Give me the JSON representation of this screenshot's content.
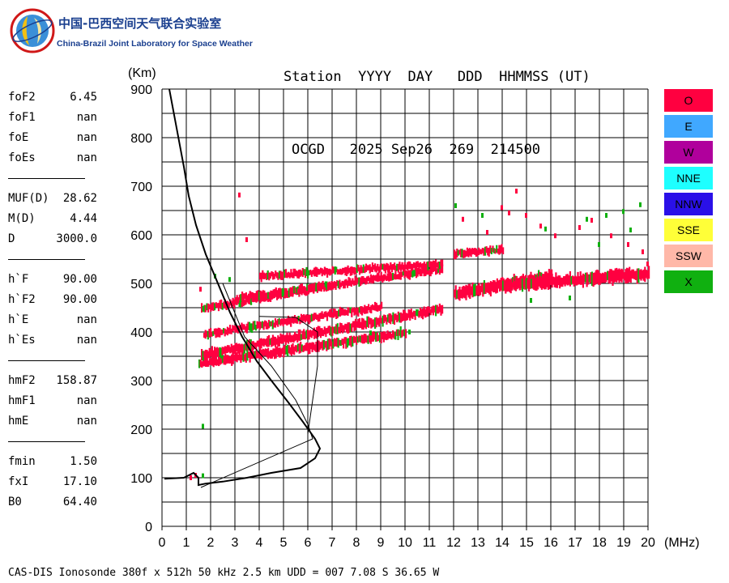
{
  "logo": {
    "name_cn": "中国-巴西空间天气联合实验室",
    "name_en": "China-Brazil Joint Laboratory for Space Weather"
  },
  "header": {
    "line1": "Station  YYYY  DAY   DDD  HHMMSS (UT)",
    "line2": "OCGD   2025 Sep26  269  214500"
  },
  "params": [
    {
      "k": "foF2",
      "v": "6.45"
    },
    {
      "k": "foF1",
      "v": "nan"
    },
    {
      "k": "foE",
      "v": "nan"
    },
    {
      "k": "foEs",
      "v": "nan"
    },
    {
      "sep": true
    },
    {
      "k": "MUF(D)",
      "v": "28.62"
    },
    {
      "k": "M(D)",
      "v": "4.44"
    },
    {
      "k": "D",
      "v": "3000.0"
    },
    {
      "sep": true
    },
    {
      "k": "h`F",
      "v": "90.00"
    },
    {
      "k": "h`F2",
      "v": "90.00"
    },
    {
      "k": "h`E",
      "v": "nan"
    },
    {
      "k": "h`Es",
      "v": "nan"
    },
    {
      "sep": true
    },
    {
      "k": "hmF2",
      "v": "158.87"
    },
    {
      "k": "hmF1",
      "v": "nan"
    },
    {
      "k": "hmE",
      "v": "nan"
    },
    {
      "sep": true
    },
    {
      "k": "fmin",
      "v": "1.50"
    },
    {
      "k": "fxI",
      "v": "17.10"
    },
    {
      "k": "B0",
      "v": "64.40"
    }
  ],
  "legend": [
    {
      "label": "O",
      "color": "#ff0040"
    },
    {
      "label": "E",
      "color": "#40a8ff"
    },
    {
      "label": "W",
      "color": "#b0009c"
    },
    {
      "label": "NNE",
      "color": "#1effff"
    },
    {
      "label": "NNW",
      "color": "#2a10e8"
    },
    {
      "label": "SSE",
      "color": "#ffff38"
    },
    {
      "label": "SSW",
      "color": "#ffb8a8"
    },
    {
      "label": "X",
      "color": "#10b010"
    }
  ],
  "footer": "CAS-DIS Ionosonde 380f x 512h 50 kHz 2.5 km UDD = 007 7.08 S 36.65 W",
  "chart_data": {
    "type": "scatter",
    "xlabel": "(MHz)",
    "ylabel": "(Km)",
    "xlim": [
      0,
      20
    ],
    "ylim": [
      0,
      900
    ],
    "xticks": [
      "0",
      "1",
      "2",
      "3",
      "4",
      "5",
      "6",
      "7",
      "8",
      "9",
      "10",
      "11",
      "12",
      "13",
      "14",
      "15",
      "16",
      "17",
      "18",
      "19",
      "20"
    ],
    "yticks": [
      "0",
      "100",
      "200",
      "300",
      "400",
      "500",
      "600",
      "700",
      "800",
      "900"
    ],
    "grid": true,
    "colors": {
      "O": "#ff0040",
      "X": "#10b010",
      "profile": "#000000"
    },
    "bands": [
      {
        "series": "O",
        "x0": 1.5,
        "x1": 10.0,
        "y0": 335,
        "y1": 398,
        "thick": 12
      },
      {
        "series": "O",
        "x0": 1.6,
        "x1": 11.5,
        "y0": 352,
        "y1": 448,
        "thick": 12
      },
      {
        "series": "O",
        "x0": 1.7,
        "x1": 9.0,
        "y0": 395,
        "y1": 452,
        "thick": 10
      },
      {
        "series": "O",
        "x0": 1.6,
        "x1": 7.0,
        "y0": 448,
        "y1": 495,
        "thick": 10
      },
      {
        "series": "O",
        "x0": 3.0,
        "x1": 11.5,
        "y0": 468,
        "y1": 530,
        "thick": 10
      },
      {
        "series": "O",
        "x0": 4.0,
        "x1": 11.5,
        "y0": 515,
        "y1": 540,
        "thick": 10
      },
      {
        "series": "O",
        "x0": 12.0,
        "x1": 16.0,
        "y0": 478,
        "y1": 515,
        "thick": 16
      },
      {
        "series": "O",
        "x0": 14.0,
        "x1": 20.0,
        "y0": 495,
        "y1": 520,
        "thick": 16
      },
      {
        "series": "O",
        "x0": 12.0,
        "x1": 14.0,
        "y0": 560,
        "y1": 570,
        "thick": 10
      }
    ],
    "points": [
      {
        "series": "O",
        "x": 3.2,
        "y": 682
      },
      {
        "series": "O",
        "x": 14.0,
        "y": 656
      },
      {
        "series": "O",
        "x": 14.3,
        "y": 645
      },
      {
        "series": "O",
        "x": 14.6,
        "y": 690
      },
      {
        "series": "O",
        "x": 15.0,
        "y": 640
      },
      {
        "series": "O",
        "x": 12.4,
        "y": 632
      },
      {
        "series": "O",
        "x": 13.4,
        "y": 605
      },
      {
        "series": "O",
        "x": 15.6,
        "y": 618
      },
      {
        "series": "O",
        "x": 16.2,
        "y": 598
      },
      {
        "series": "O",
        "x": 17.2,
        "y": 615
      },
      {
        "series": "O",
        "x": 17.7,
        "y": 630
      },
      {
        "series": "O",
        "x": 18.5,
        "y": 598
      },
      {
        "series": "O",
        "x": 19.2,
        "y": 580
      },
      {
        "series": "O",
        "x": 19.8,
        "y": 565
      },
      {
        "series": "O",
        "x": 3.5,
        "y": 590
      },
      {
        "series": "O",
        "x": 1.6,
        "y": 488
      },
      {
        "series": "O",
        "x": 1.2,
        "y": 100
      },
      {
        "series": "O",
        "x": 1.4,
        "y": 105
      },
      {
        "series": "O",
        "x": 20.0,
        "y": 540
      },
      {
        "series": "X",
        "x": 1.7,
        "y": 206
      },
      {
        "series": "X",
        "x": 1.7,
        "y": 104
      },
      {
        "series": "X",
        "x": 12.1,
        "y": 660
      },
      {
        "series": "X",
        "x": 13.2,
        "y": 640
      },
      {
        "series": "X",
        "x": 15.8,
        "y": 612
      },
      {
        "series": "X",
        "x": 17.5,
        "y": 632
      },
      {
        "series": "X",
        "x": 18.3,
        "y": 640
      },
      {
        "series": "X",
        "x": 19.0,
        "y": 648
      },
      {
        "series": "X",
        "x": 19.7,
        "y": 662
      },
      {
        "series": "X",
        "x": 19.3,
        "y": 610
      },
      {
        "series": "X",
        "x": 18.0,
        "y": 580
      },
      {
        "series": "X",
        "x": 16.8,
        "y": 470
      },
      {
        "series": "X",
        "x": 15.2,
        "y": 465
      },
      {
        "series": "X",
        "x": 10.2,
        "y": 400
      },
      {
        "series": "X",
        "x": 8.6,
        "y": 398
      },
      {
        "series": "X",
        "x": 2.2,
        "y": 515
      },
      {
        "series": "X",
        "x": 2.8,
        "y": 508
      }
    ],
    "profile": [
      [
        0.3,
        900
      ],
      [
        0.6,
        820
      ],
      [
        0.9,
        740
      ],
      [
        1.1,
        680
      ],
      [
        1.4,
        620
      ],
      [
        1.8,
        560
      ],
      [
        2.3,
        500
      ],
      [
        2.8,
        440
      ],
      [
        3.3,
        390
      ],
      [
        3.9,
        340
      ],
      [
        4.5,
        300
      ],
      [
        5.2,
        255
      ],
      [
        5.8,
        215
      ],
      [
        6.3,
        180
      ],
      [
        6.5,
        160
      ],
      [
        6.3,
        140
      ],
      [
        5.7,
        120
      ],
      [
        4.5,
        110
      ],
      [
        3.5,
        100
      ],
      [
        2.5,
        92
      ],
      [
        1.8,
        88
      ],
      [
        1.5,
        85
      ],
      [
        1.5,
        100
      ],
      [
        1.3,
        110
      ],
      [
        0.9,
        100
      ],
      [
        0.1,
        98
      ]
    ],
    "thin_lines": [
      [
        [
          2.5,
          500
        ],
        [
          3.4,
          390
        ],
        [
          4.5,
          330
        ],
        [
          5.5,
          260
        ],
        [
          6.0,
          210
        ],
        [
          6.2,
          180
        ],
        [
          1.6,
          80
        ]
      ],
      [
        [
          6.0,
          190
        ],
        [
          6.4,
          330
        ],
        [
          6.4,
          400
        ],
        [
          5.5,
          430
        ],
        [
          4.0,
          432
        ]
      ]
    ]
  }
}
